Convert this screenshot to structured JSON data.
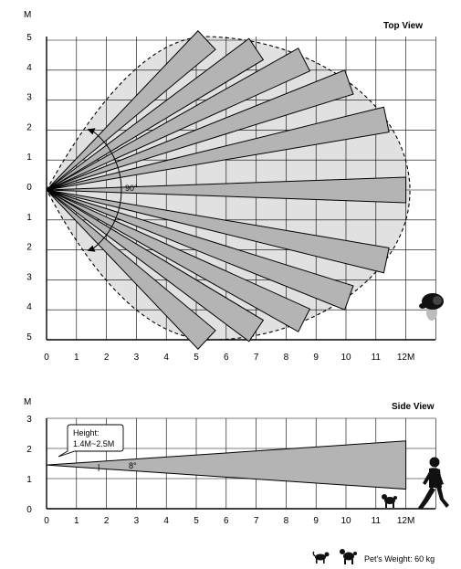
{
  "top_view": {
    "title": "Top View",
    "y_unit": "M",
    "x_ticks": [
      "0",
      "1",
      "2",
      "3",
      "4",
      "5",
      "6",
      "7",
      "8",
      "9",
      "10",
      "11",
      "12M"
    ],
    "y_ticks": [
      "5",
      "4",
      "3",
      "2",
      "1",
      "0",
      "1",
      "2",
      "3",
      "4",
      "5"
    ],
    "angle_label": "90°",
    "beams": [
      {
        "end_x": 5.35,
        "end_y": 5.0
      },
      {
        "end_x": 7.0,
        "end_y": 4.7
      },
      {
        "end_x": 8.6,
        "end_y": 4.35
      },
      {
        "end_x": 10.1,
        "end_y": 3.6
      },
      {
        "end_x": 11.35,
        "end_y": 2.35
      },
      {
        "end_x": 12.0,
        "end_y": 0.0
      },
      {
        "end_x": 11.35,
        "end_y": -2.35
      },
      {
        "end_x": 10.1,
        "end_y": -3.6
      },
      {
        "end_x": 8.6,
        "end_y": -4.35
      },
      {
        "end_x": 7.0,
        "end_y": -4.7
      },
      {
        "end_x": 5.35,
        "end_y": -5.0
      }
    ]
  },
  "side_view": {
    "title": "Side View",
    "y_unit": "M",
    "x_ticks": [
      "0",
      "1",
      "2",
      "3",
      "4",
      "5",
      "6",
      "7",
      "8",
      "9",
      "10",
      "11",
      "12M"
    ],
    "y_ticks": [
      "3",
      "2",
      "1",
      "0"
    ],
    "height_label_line1": "Height:",
    "height_label_line2": "1.4M~2.5M",
    "angle_label": "8°",
    "mount_height": 1.45,
    "beam_top_at_12m": 2.25,
    "beam_bottom_at_12m": 0.65
  },
  "pet_weight_label": "Pet's Weight: 60 kg",
  "colors": {
    "beam": "#b4b4b4",
    "zone": "#e1e1e1",
    "grid": "#000000",
    "line": "#000000"
  }
}
